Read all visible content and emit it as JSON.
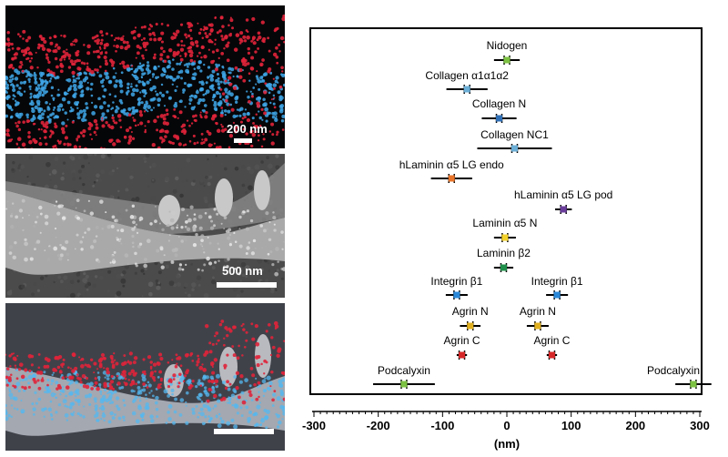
{
  "panels": {
    "top": {
      "scale_label": "200 nm"
    },
    "middle": {
      "scale_label": "500 nm"
    },
    "bottom": {
      "scale_label": ""
    }
  },
  "chart_data": {
    "type": "dot-plot-with-error-bars",
    "xlabel": "(nm)",
    "xlim": [
      -300,
      300
    ],
    "xticks": [
      -300,
      -200,
      -100,
      0,
      100,
      200,
      300
    ],
    "grid": false,
    "entries": [
      {
        "label": "Nidogen",
        "value": 0,
        "err": 20,
        "color": "#7cc142"
      },
      {
        "label": "Collagen α1α1α2",
        "value": -62,
        "err": 32,
        "color": "#6baed6"
      },
      {
        "label": "Collagen N",
        "value": -12,
        "err": 27,
        "color": "#2f6fb5"
      },
      {
        "label": "Collagen NC1",
        "value": 12,
        "err": 58,
        "color": "#6baed6"
      },
      {
        "label": "hLaminin α5 LG endo",
        "value": -86,
        "err": 32,
        "color": "#e8742a"
      },
      {
        "label": "hLaminin α5 LG pod",
        "value": 88,
        "err": 13,
        "color": "#6a3d9a"
      },
      {
        "label": "Laminin α5 N",
        "value": -3,
        "err": 17,
        "color": "#f2d12a"
      },
      {
        "label": "Laminin β2",
        "value": -5,
        "err": 15,
        "color": "#1f8f4a"
      },
      {
        "label": "Integrin β1",
        "value": -78,
        "err": 17,
        "color": "#2b88d8"
      },
      {
        "label": "Integrin β1",
        "value": 78,
        "err": 17,
        "color": "#2b88d8"
      },
      {
        "label": "Agrin N",
        "value": -57,
        "err": 16,
        "color": "#e0b020"
      },
      {
        "label": "Agrin N",
        "value": 48,
        "err": 17,
        "color": "#e0b020"
      },
      {
        "label": "Agrin C",
        "value": -70,
        "err": 8,
        "color": "#d62728"
      },
      {
        "label": "Agrin C",
        "value": 70,
        "err": 8,
        "color": "#d62728"
      },
      {
        "label": "Podcalyxin",
        "value": -160,
        "err": 48,
        "color": "#7cc142"
      },
      {
        "label": "Podcalyxin",
        "value": 290,
        "err": 28,
        "color": "#7cc142"
      }
    ]
  }
}
